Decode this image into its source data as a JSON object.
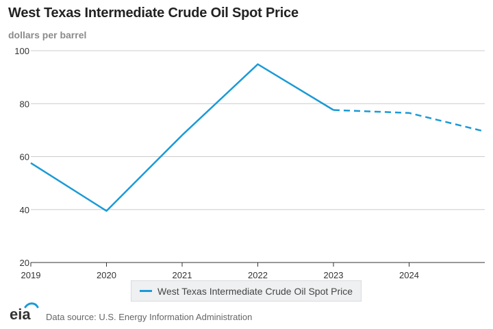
{
  "title": "West Texas Intermediate Crude Oil Spot Price",
  "subtitle": "dollars per barrel",
  "source": "Data source: U.S. Energy Information Administration",
  "logo_text": "eia",
  "colors": {
    "series": "#1a9ad6",
    "grid": "#cccccc",
    "axis": "#333333",
    "logo_arc": "#1a9ad6"
  },
  "chart_data": {
    "type": "line",
    "ylabel": "dollars per barrel",
    "ylim": [
      20,
      100
    ],
    "yticks": [
      20,
      40,
      60,
      80,
      100
    ],
    "xlim": [
      2019,
      2025
    ],
    "xticks": [
      2019,
      2020,
      2021,
      2022,
      2023,
      2024
    ],
    "grid": true,
    "legend_placement": "bottom-center",
    "series": [
      {
        "name": "West Texas Intermediate Crude Oil Spot Price",
        "x": [
          2019,
          2020,
          2021,
          2022,
          2023,
          2024,
          2025
        ],
        "values": [
          57.6,
          39.5,
          68.1,
          94.9,
          77.6,
          76.5,
          69.5
        ],
        "historical_through": 2023,
        "forecast_style": "dashed"
      }
    ]
  }
}
